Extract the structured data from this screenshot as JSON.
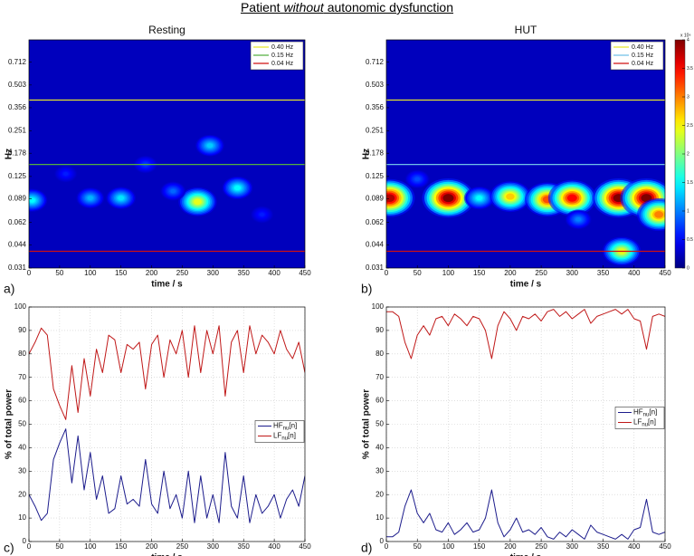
{
  "figure_title": [
    "Patient ",
    "without",
    " autonomic dysfunction"
  ],
  "chart_data": [
    {
      "type": "heatmap",
      "title": "Resting",
      "panel_label": "a)",
      "xlabel": "time / s",
      "ylabel": "Hz",
      "xlim": [
        0,
        450
      ],
      "xticks": [
        0,
        50,
        100,
        150,
        200,
        250,
        300,
        350,
        400,
        450
      ],
      "ylim": [
        0.031,
        1.0
      ],
      "log_y": true,
      "yticks": [
        0.031,
        0.044,
        0.062,
        0.089,
        0.125,
        0.178,
        0.251,
        0.356,
        0.503,
        0.712
      ],
      "zlim": [
        0,
        4
      ],
      "legend": "upper right",
      "lines": [
        {
          "name": "0.40 Hz",
          "value": 0.4,
          "color": "#e6e62e"
        },
        {
          "name": "0.15 Hz",
          "value": 0.15,
          "color": "#55b040"
        },
        {
          "name": "0.04 Hz",
          "value": 0.04,
          "color": "#d01010"
        }
      ],
      "peaks": [
        {
          "t": 5,
          "f": 0.087,
          "z": 1.5
        },
        {
          "t": 100,
          "f": 0.09,
          "z": 1.2
        },
        {
          "t": 150,
          "f": 0.09,
          "z": 1.4
        },
        {
          "t": 190,
          "f": 0.15,
          "z": 0.7
        },
        {
          "t": 275,
          "f": 0.085,
          "z": 2.4
        },
        {
          "t": 295,
          "f": 0.2,
          "z": 1.3
        },
        {
          "t": 340,
          "f": 0.105,
          "z": 1.5
        },
        {
          "t": 60,
          "f": 0.13,
          "z": 0.6
        },
        {
          "t": 235,
          "f": 0.1,
          "z": 0.9
        },
        {
          "t": 380,
          "f": 0.07,
          "z": 0.6
        }
      ]
    },
    {
      "type": "heatmap",
      "title": "HUT",
      "panel_label": "b)",
      "xlabel": "time / s",
      "ylabel": "Hz",
      "xlim": [
        0,
        450
      ],
      "xticks": [
        0,
        50,
        100,
        150,
        200,
        250,
        300,
        350,
        400,
        450
      ],
      "ylim": [
        0.031,
        1.0
      ],
      "log_y": true,
      "yticks": [
        0.031,
        0.044,
        0.062,
        0.089,
        0.125,
        0.178,
        0.251,
        0.356,
        0.503,
        0.712
      ],
      "zlim": [
        0,
        4
      ],
      "legend": "upper right",
      "colorbar": true,
      "colorbar_label": "x 10⁶",
      "colorbar_ticks": [
        0,
        0.5,
        1,
        1.5,
        2,
        2.5,
        3,
        3.5,
        4
      ],
      "lines": [
        {
          "name": "0.40 Hz",
          "value": 0.4,
          "color": "#e6e62e"
        },
        {
          "name": "0.15 Hz",
          "value": 0.15,
          "color": "#70c0e8"
        },
        {
          "name": "0.04 Hz",
          "value": 0.04,
          "color": "#d01010"
        }
      ],
      "peaks": [
        {
          "t": 5,
          "f": 0.09,
          "z": 3.8
        },
        {
          "t": 100,
          "f": 0.09,
          "z": 4
        },
        {
          "t": 150,
          "f": 0.09,
          "z": 1.5
        },
        {
          "t": 200,
          "f": 0.092,
          "z": 2.7
        },
        {
          "t": 260,
          "f": 0.088,
          "z": 3.2
        },
        {
          "t": 300,
          "f": 0.09,
          "z": 3.5
        },
        {
          "t": 50,
          "f": 0.12,
          "z": 0.8
        },
        {
          "t": 375,
          "f": 0.09,
          "z": 4
        },
        {
          "t": 420,
          "f": 0.09,
          "z": 4
        },
        {
          "t": 440,
          "f": 0.07,
          "z": 3
        },
        {
          "t": 380,
          "f": 0.04,
          "z": 2.4
        },
        {
          "t": 310,
          "f": 0.065,
          "z": 1
        }
      ]
    },
    {
      "type": "line",
      "panel_label": "c)",
      "xlabel": "time / s",
      "ylabel": "% of total power",
      "xlim": [
        0,
        450
      ],
      "xticks": [
        0,
        50,
        100,
        150,
        200,
        250,
        300,
        350,
        400,
        450
      ],
      "ylim": [
        0,
        100
      ],
      "yticks": [
        0,
        10,
        20,
        30,
        40,
        50,
        60,
        70,
        80,
        90,
        100
      ],
      "grid": true,
      "legend": "center right",
      "x": [
        0,
        10,
        20,
        30,
        40,
        50,
        60,
        70,
        80,
        90,
        100,
        110,
        120,
        130,
        140,
        150,
        160,
        170,
        180,
        190,
        200,
        210,
        220,
        230,
        240,
        250,
        260,
        270,
        280,
        290,
        300,
        310,
        320,
        330,
        340,
        350,
        360,
        370,
        380,
        390,
        400,
        410,
        420,
        430,
        440,
        450
      ],
      "series": [
        {
          "name": "HF",
          "subscript": "nu",
          "suffix": "[n]",
          "color": "#1c1c8c",
          "values": [
            20,
            15,
            9,
            12,
            35,
            42,
            48,
            25,
            45,
            22,
            38,
            18,
            28,
            12,
            14,
            28,
            16,
            18,
            15,
            35,
            16,
            12,
            30,
            14,
            20,
            10,
            30,
            8,
            28,
            10,
            20,
            8,
            38,
            15,
            10,
            28,
            8,
            20,
            12,
            15,
            20,
            10,
            18,
            22,
            15,
            28
          ]
        },
        {
          "name": "LF",
          "subscript": "nu",
          "suffix": "[n]",
          "color": "#c01818",
          "values": [
            80,
            85,
            91,
            88,
            65,
            58,
            52,
            75,
            55,
            78,
            62,
            82,
            72,
            88,
            86,
            72,
            84,
            82,
            85,
            65,
            84,
            88,
            70,
            86,
            80,
            90,
            70,
            92,
            72,
            90,
            80,
            92,
            62,
            85,
            90,
            72,
            92,
            80,
            88,
            85,
            80,
            90,
            82,
            78,
            85,
            72
          ]
        }
      ]
    },
    {
      "type": "line",
      "panel_label": "d)",
      "xlabel": "time / s",
      "ylabel": "% of total power",
      "xlim": [
        0,
        450
      ],
      "xticks": [
        0,
        50,
        100,
        150,
        200,
        250,
        300,
        350,
        400,
        450
      ],
      "ylim": [
        0,
        100
      ],
      "yticks": [
        0,
        10,
        20,
        30,
        40,
        50,
        60,
        70,
        80,
        90,
        100
      ],
      "grid": true,
      "legend": "center right",
      "x": [
        0,
        10,
        20,
        30,
        40,
        50,
        60,
        70,
        80,
        90,
        100,
        110,
        120,
        130,
        140,
        150,
        160,
        170,
        180,
        190,
        200,
        210,
        220,
        230,
        240,
        250,
        260,
        270,
        280,
        290,
        300,
        310,
        320,
        330,
        340,
        350,
        360,
        370,
        380,
        390,
        400,
        410,
        420,
        430,
        440,
        450
      ],
      "series": [
        {
          "name": "HF",
          "subscript": "nu",
          "suffix": "[n]",
          "color": "#1c1c8c",
          "values": [
            2,
            2,
            4,
            15,
            22,
            12,
            8,
            12,
            5,
            4,
            8,
            3,
            5,
            8,
            4,
            5,
            10,
            22,
            8,
            2,
            5,
            10,
            4,
            5,
            3,
            6,
            2,
            1,
            4,
            2,
            5,
            3,
            1,
            7,
            4,
            3,
            2,
            1,
            3,
            1,
            5,
            6,
            18,
            4,
            3,
            4
          ]
        },
        {
          "name": "LF",
          "subscript": "nu",
          "suffix": "[n]",
          "color": "#c01818",
          "values": [
            98,
            98,
            96,
            85,
            78,
            88,
            92,
            88,
            95,
            96,
            92,
            97,
            95,
            92,
            96,
            95,
            90,
            78,
            92,
            98,
            95,
            90,
            96,
            95,
            97,
            94,
            98,
            99,
            96,
            98,
            95,
            97,
            99,
            93,
            96,
            97,
            98,
            99,
            97,
            99,
            95,
            94,
            82,
            96,
            97,
            96
          ]
        }
      ]
    }
  ]
}
